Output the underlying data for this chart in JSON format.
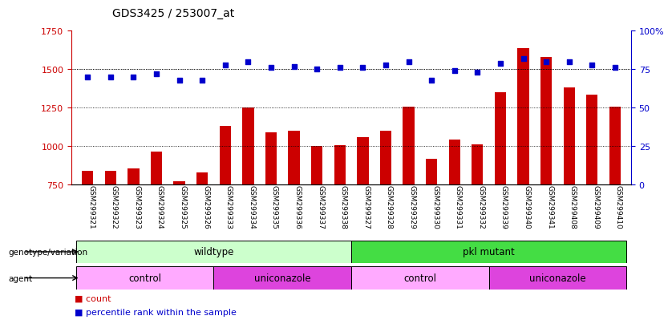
{
  "title": "GDS3425 / 253007_at",
  "samples": [
    "GSM299321",
    "GSM299322",
    "GSM299323",
    "GSM299324",
    "GSM299325",
    "GSM299326",
    "GSM299333",
    "GSM299334",
    "GSM299335",
    "GSM299336",
    "GSM299337",
    "GSM299338",
    "GSM299327",
    "GSM299328",
    "GSM299329",
    "GSM299330",
    "GSM299331",
    "GSM299332",
    "GSM299339",
    "GSM299340",
    "GSM299341",
    "GSM299408",
    "GSM299409",
    "GSM299410"
  ],
  "counts": [
    840,
    840,
    855,
    965,
    775,
    830,
    1130,
    1250,
    1090,
    1100,
    1000,
    1005,
    1060,
    1100,
    1255,
    920,
    1045,
    1010,
    1350,
    1640,
    1580,
    1380,
    1335,
    1255
  ],
  "percentile": [
    70,
    70,
    70,
    72,
    68,
    68,
    78,
    80,
    76,
    77,
    75,
    76,
    76,
    78,
    80,
    68,
    74,
    73,
    79,
    82,
    80,
    80,
    78,
    76
  ],
  "bar_color": "#cc0000",
  "dot_color": "#0000cc",
  "ylim_left": [
    750,
    1750
  ],
  "ylim_right": [
    0,
    100
  ],
  "yticks_left": [
    750,
    1000,
    1250,
    1500,
    1750
  ],
  "yticks_right": [
    0,
    25,
    50,
    75,
    100
  ],
  "grid_values": [
    1000,
    1250,
    1500
  ],
  "genotype_groups": [
    {
      "label": "wildtype",
      "start": 0,
      "end": 11,
      "color": "#ccffcc"
    },
    {
      "label": "pkl mutant",
      "start": 12,
      "end": 23,
      "color": "#44dd44"
    }
  ],
  "agent_groups": [
    {
      "label": "control",
      "start": 0,
      "end": 5,
      "color": "#ffaaff"
    },
    {
      "label": "uniconazole",
      "start": 6,
      "end": 11,
      "color": "#dd44dd"
    },
    {
      "label": "control",
      "start": 12,
      "end": 17,
      "color": "#ffaaff"
    },
    {
      "label": "uniconazole",
      "start": 18,
      "end": 23,
      "color": "#dd44dd"
    }
  ],
  "bar_width": 0.5,
  "background_color": "#ffffff"
}
